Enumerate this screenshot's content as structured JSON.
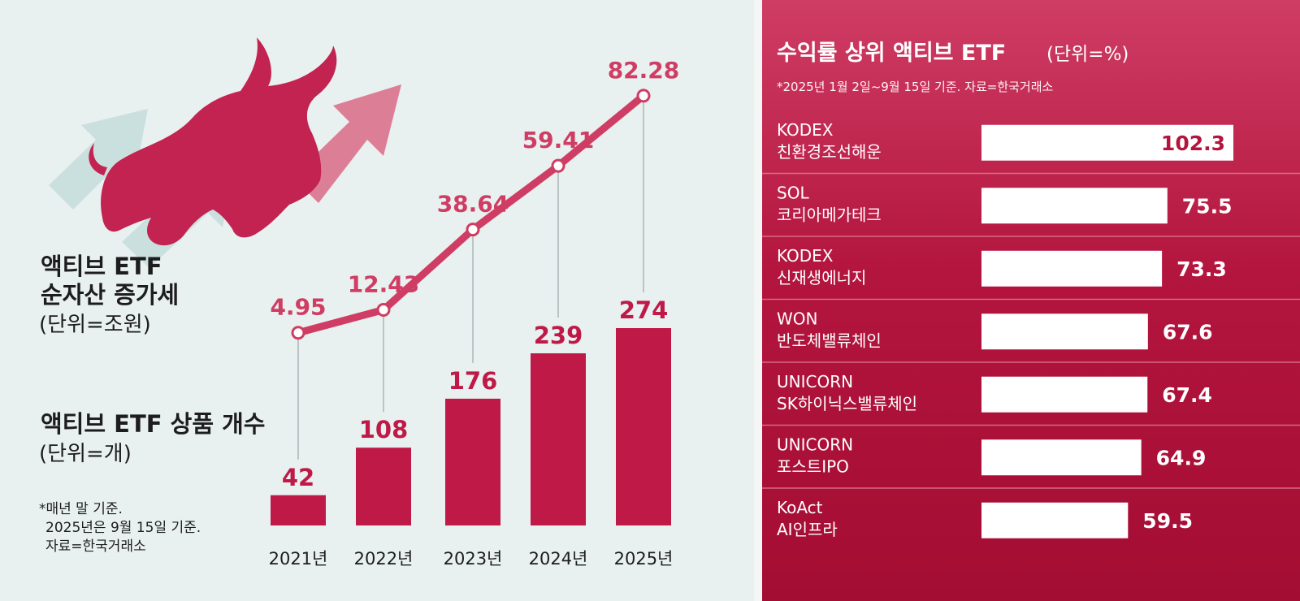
{
  "left": {
    "line_title_1": "액티브 ETF",
    "line_title_2": "순자산 증가세",
    "line_unit": "(단위=조원)",
    "bar_title": "액티브 ETF 상품 개수",
    "bar_unit": "(단위=개)",
    "note_1": "*매년 말 기준.",
    "note_2": "2025년은 9월 15일 기준.",
    "note_3": "자료=한국거래소"
  },
  "right": {
    "title": "수익률 상위 액티브 ETF",
    "unit": "(단위=%)",
    "subtitle": "*2025년 1월 2일~9월 15일 기준. 자료=한국거래소"
  },
  "colors": {
    "accent": "#bf1a47",
    "line_accent": "#cf3d64",
    "panel_left_bg": "#e9f0f0",
    "arrow_teal": "#bcd8d7",
    "panel_right_bg": "#b3153e"
  },
  "icons": [
    "bull-icon",
    "rising-arrow-icon"
  ],
  "chart_data": [
    {
      "type": "line",
      "x": [
        "2021년",
        "2022년",
        "2023년",
        "2024년",
        "2025년"
      ],
      "series": [
        {
          "values": [
            4.95,
            12.43,
            38.64,
            59.41,
            82.28
          ]
        }
      ],
      "value_labels": [
        "4.95",
        "12.43",
        "38.64",
        "59.41",
        "82.28"
      ],
      "ylim": [
        0,
        90
      ]
    },
    {
      "type": "bar",
      "categories": [
        "2021년",
        "2022년",
        "2023년",
        "2024년",
        "2025년"
      ],
      "values": [
        42,
        108,
        176,
        239,
        274
      ],
      "value_labels": [
        "42",
        "108",
        "176",
        "239",
        "274"
      ],
      "ylim": [
        0,
        300
      ]
    },
    {
      "type": "bar",
      "orientation": "horizontal",
      "categories": [
        {
          "line1": "KODEX",
          "line2": "친환경조선해운"
        },
        {
          "line1": "SOL",
          "line2": "코리아메가테크"
        },
        {
          "line1": "KODEX",
          "line2": "신재생에너지"
        },
        {
          "line1": "WON",
          "line2": "반도체밸류체인"
        },
        {
          "line1": "UNICORN",
          "line2": "SK하이닉스밸류체인"
        },
        {
          "line1": "UNICORN",
          "line2": "포스트IPO"
        },
        {
          "line1": "KoAct",
          "line2": "AI인프라"
        }
      ],
      "values": [
        102.3,
        75.5,
        73.3,
        67.6,
        67.4,
        64.9,
        59.5
      ],
      "value_labels": [
        "102.3",
        "75.5",
        "73.3",
        "67.6",
        "67.4",
        "64.9",
        "59.5"
      ],
      "xlim": [
        0,
        102.3
      ]
    }
  ]
}
